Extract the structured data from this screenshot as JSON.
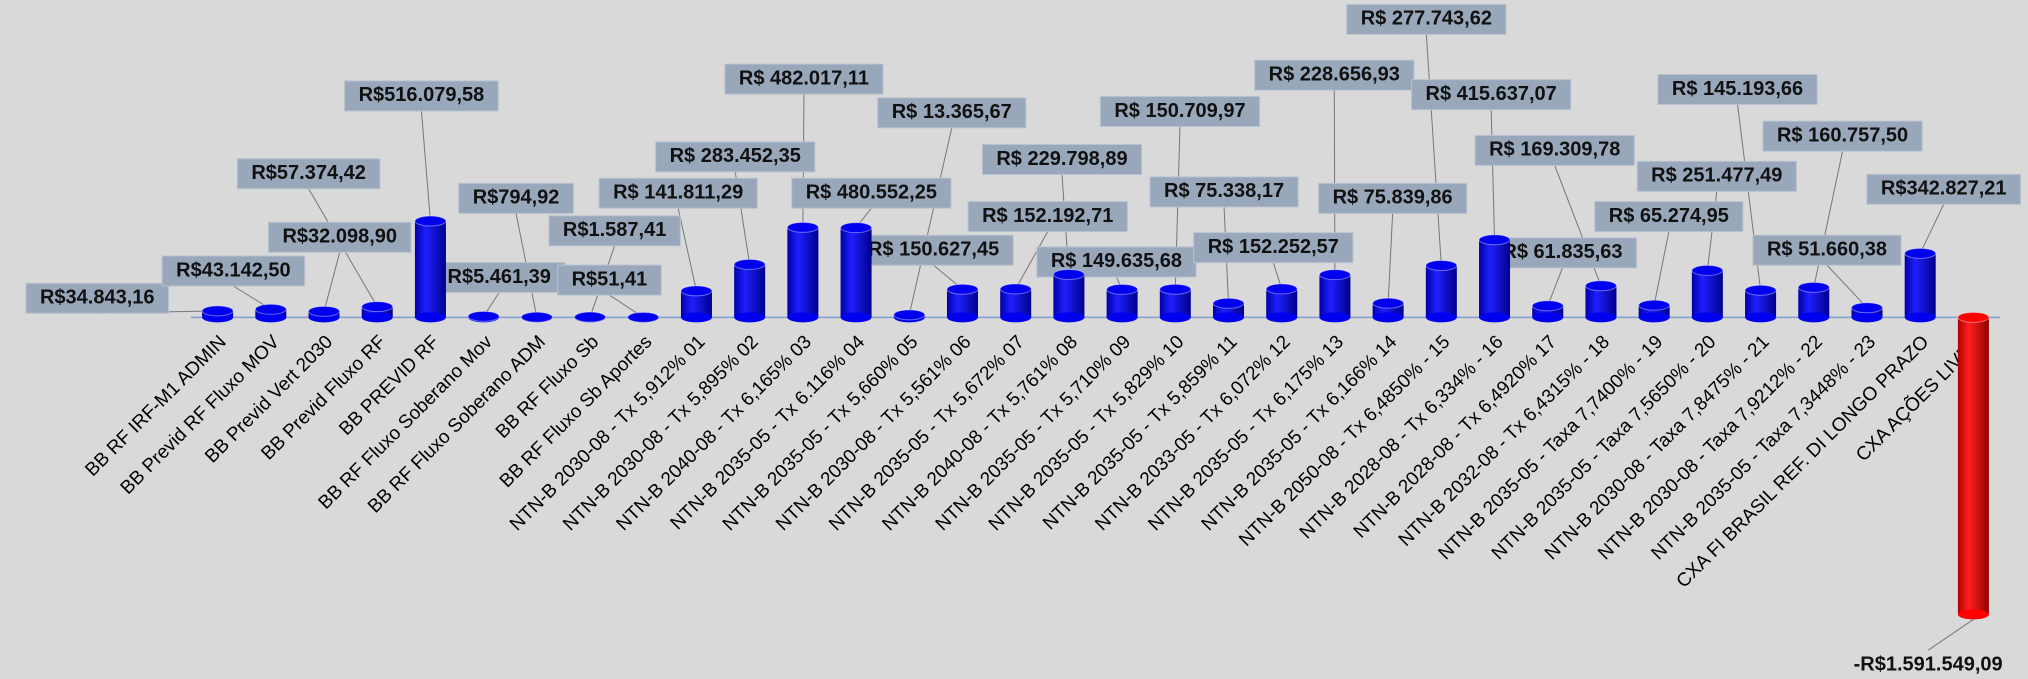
{
  "chart_data": {
    "type": "bar",
    "categories": [
      "BB RF IRF-M1 ADMIN",
      "BB Previd RF Fluxo MOV",
      "BB Previd Vert 2030",
      "BB Previd Fluxo RF",
      "BB PREVID RF",
      "BB RF Fluxo Soberano Mov",
      "BB RF Fluxo Soberano ADM",
      "BB RF Fluxo Sb",
      "BB RF Fluxo Sb Aportes",
      "NTN-B 2030-08 - Tx 5,912% 01",
      "NTN-B 2030-08 - Tx 5,895% 02",
      "NTN-B 2040-08 - Tx 6,165% 03",
      "NTN-B 2035-05 - Tx 6.116% 04",
      "NTN-B 2035-05 - Tx 5,660% 05",
      "NTN-B 2030-08 - Tx 5,561% 06",
      "NTN-B 2035-05 - Tx 5,672% 07",
      "NTN-B 2040-08 - Tx 5,761% 08",
      "NTN-B 2035-05 - Tx 5,710% 09",
      "NTN-B 2035-05 - Tx 5,829% 10",
      "NTN-B 2035-05 - Tx 5,859% 11",
      "NTN-B 2033-05 - Tx 6,072% 12",
      "NTN-B 2035-05 - Tx 6,175% 13",
      "NTN-B 2035-05 - Tx 6,166% 14",
      "NTN-B 2050-08 - Tx 6,4850% - 15",
      "NTN-B 2028-08 - Tx 6,334% - 16",
      "NTN-B 2028-08 - Tx 6,4920% 17",
      "NTN-B  2032-08 - Tx 6,4315% - 18",
      "NTN-B  2035-05 - Taxa 7,7400% - 19",
      "NTN-B  2035-05 - Taxa 7,5650% - 20",
      "NTN-B  2030-08 - Taxa 7,8475% - 21",
      "NTN-B  2030-08 - Taxa 7,9212% - 22",
      "NTN-B 2035-05 - Taxa 7,3448% - 23",
      "CXA FI BRASIL REF. DI LONGO PRAZO",
      "CXA AÇÕES LIVRE"
    ],
    "values": [
      34843.16,
      43142.5,
      32098.9,
      57374.42,
      516079.58,
      5461.39,
      794.92,
      1587.41,
      51.41,
      141811.29,
      283452.35,
      482017.11,
      480552.25,
      13365.67,
      150627.45,
      152192.71,
      229798.89,
      149635.68,
      150709.97,
      75338.17,
      152252.57,
      228656.93,
      75839.86,
      277743.62,
      415637.07,
      61835.63,
      169309.78,
      65274.95,
      251477.49,
      145193.66,
      160757.5,
      51660.38,
      342827.21,
      -1591549.09
    ],
    "value_labels": [
      "R$34.843,16",
      "R$43.142,50",
      "R$32.098,90",
      "R$57.374,42",
      "R$516.079,58",
      "R$5.461,39",
      "R$794,92",
      "R$1.587,41",
      "R$51,41",
      "R$ 141.811,29",
      "R$ 283.452,35",
      "R$ 482.017,11",
      "R$ 480.552,25",
      "R$ 13.365,67",
      "R$ 150.627,45",
      "R$ 152.192,71",
      "R$ 229.798,89",
      "R$ 149.635,68",
      "R$ 150.709,97",
      "R$ 75.338,17",
      "R$ 152.252,57",
      "R$ 228.656,93",
      "R$ 75.839,86",
      "R$ 277.743,62",
      "R$ 415.637,07",
      "R$ 61.835,63",
      "R$ 169.309,78",
      "R$ 65.274,95",
      "R$ 251.477,49",
      "R$ 145.193,66",
      "R$ 160.757,50",
      "R$ 51.660,38",
      "R$342.827,21",
      "-R$1.591.549,09"
    ],
    "color": "#0000ee",
    "negative_color": "#ff0000",
    "ylim": [
      -1600000,
      1400000
    ]
  }
}
